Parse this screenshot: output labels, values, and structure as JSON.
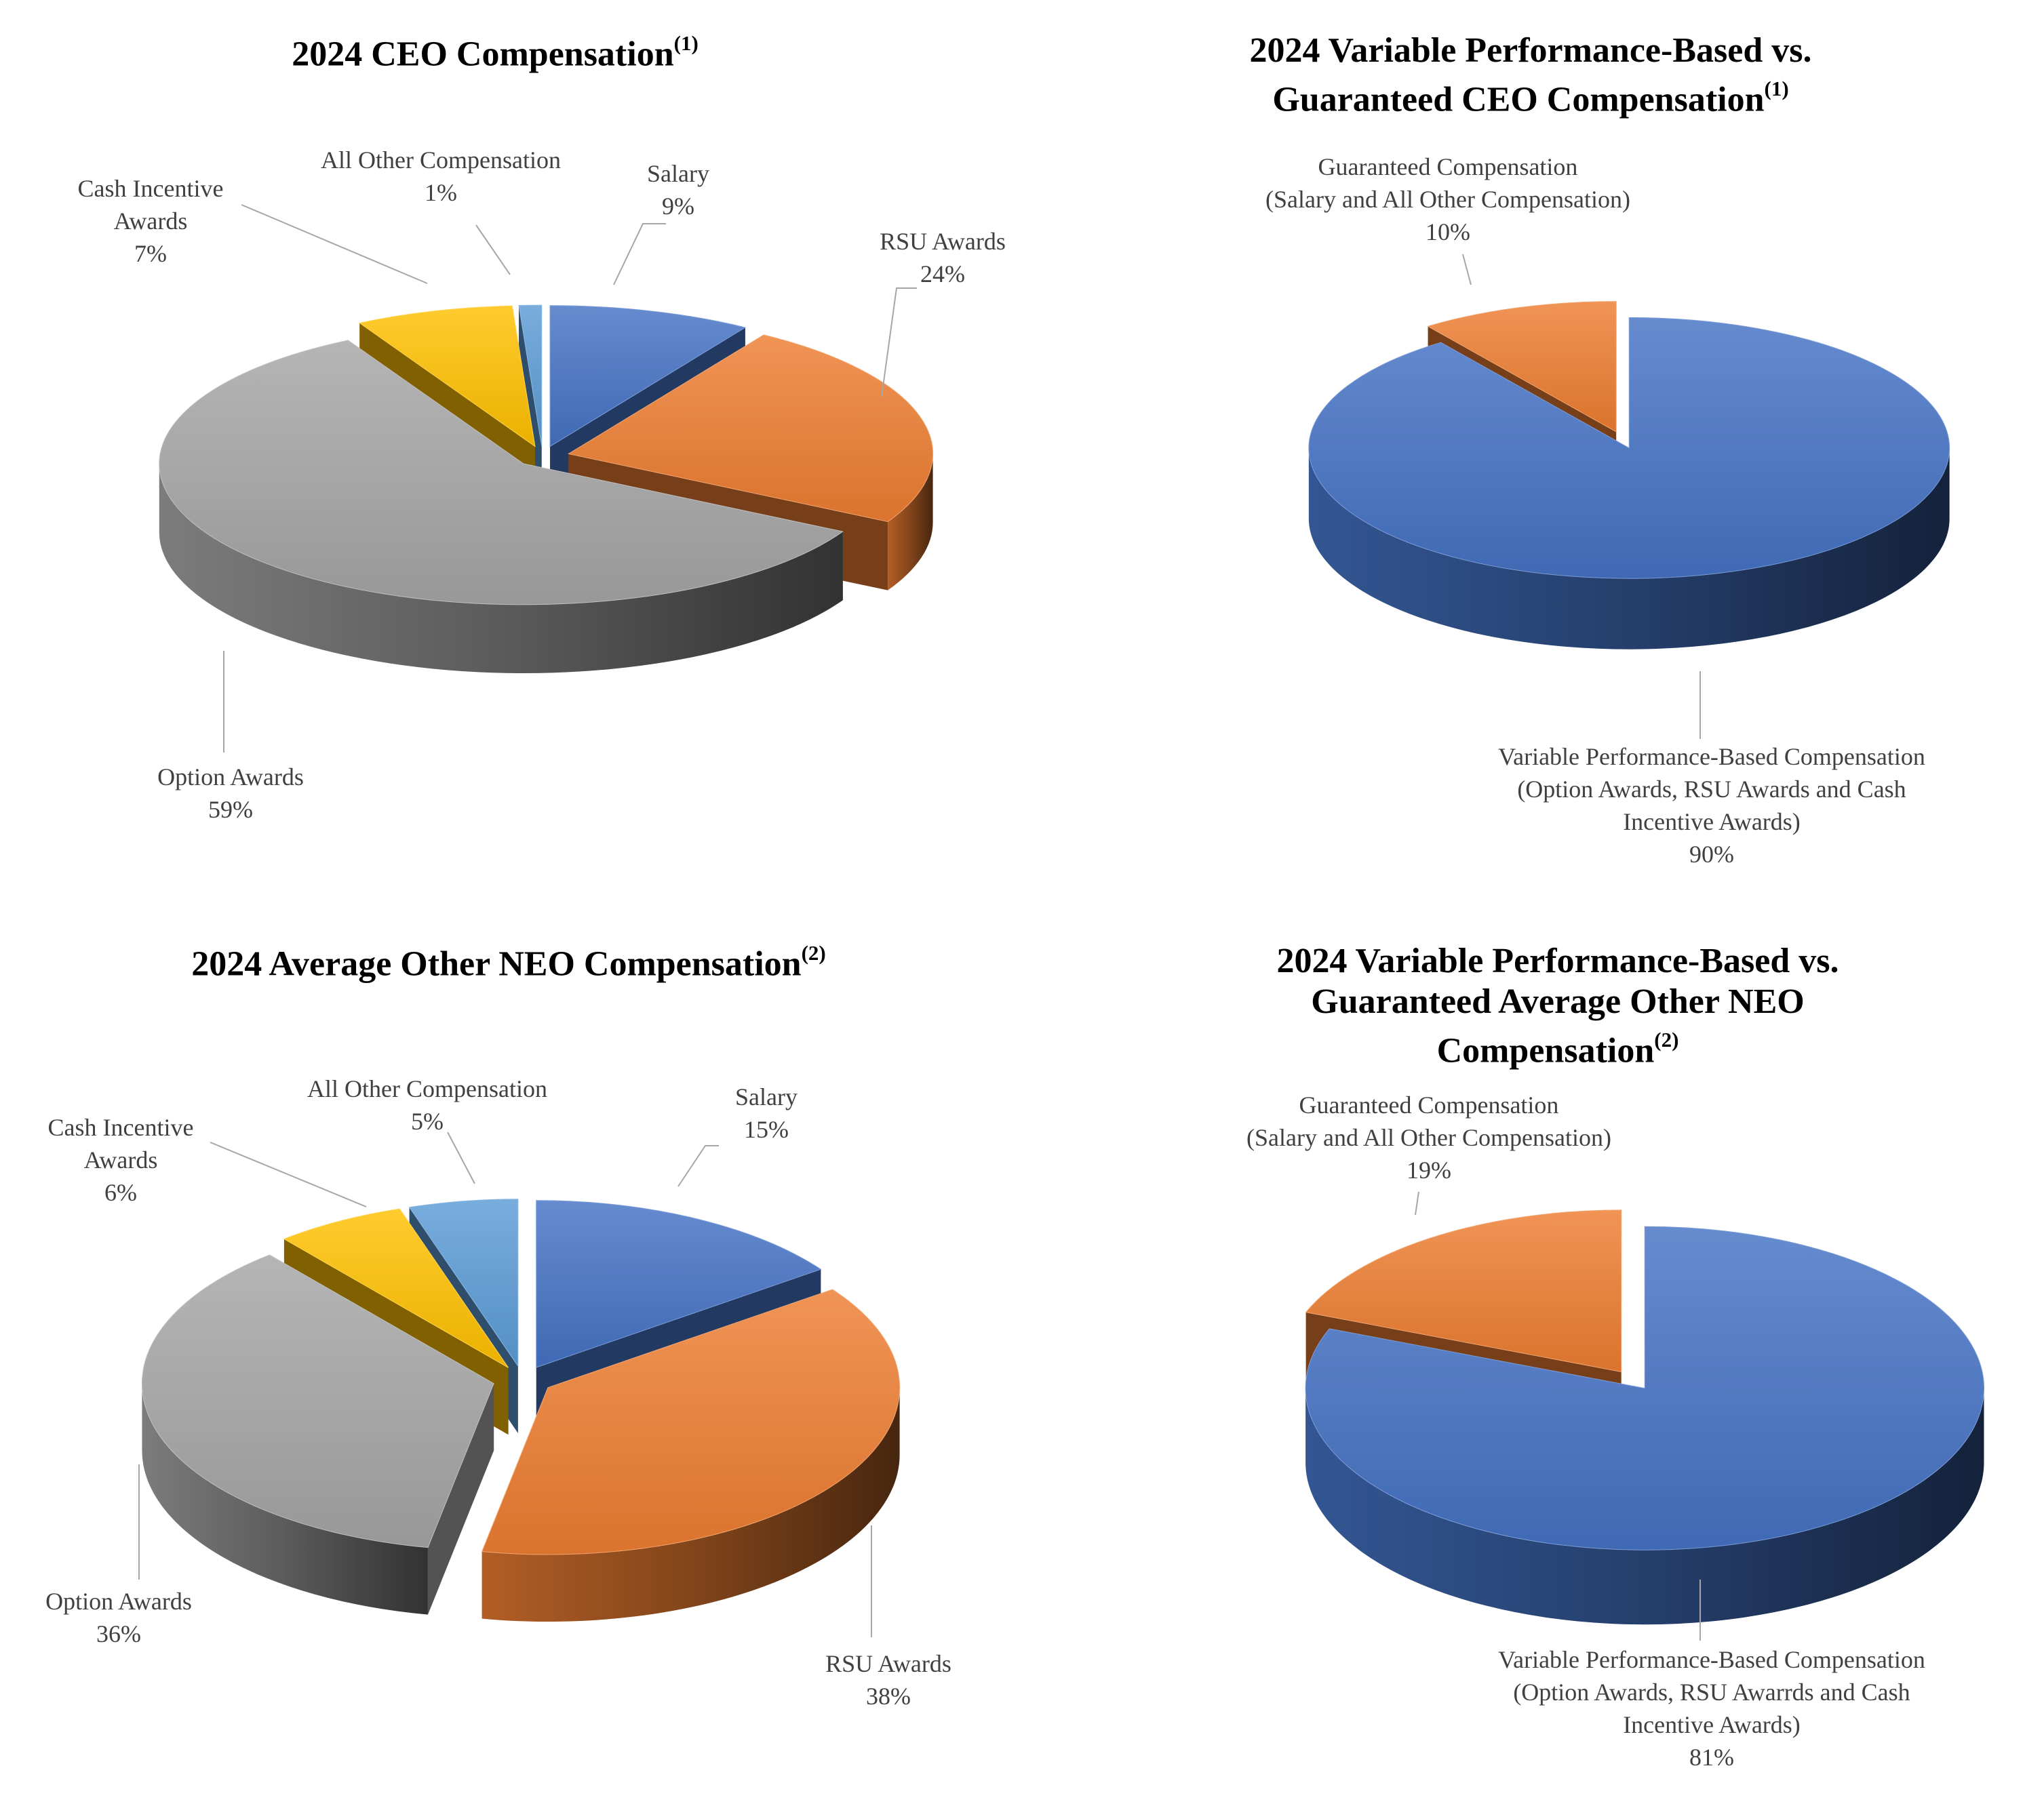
{
  "chart_data": [
    {
      "type": "pie",
      "title": "2024 CEO Compensation",
      "title_note": "(1)",
      "slices": [
        {
          "label": "Salary",
          "value": 9,
          "value_text": "9%",
          "color": "#4472C4"
        },
        {
          "label": "RSU Awards",
          "value": 24,
          "value_text": "24%",
          "color": "#ED7D31"
        },
        {
          "label": "Option Awards",
          "value": 59,
          "value_text": "59%",
          "color": "#A5A5A5"
        },
        {
          "label": "Cash Incentive Awards",
          "value": 7,
          "value_text": "7%",
          "color": "#FFC000"
        },
        {
          "label": "All Other Compensation",
          "value": 1,
          "value_text": "1%",
          "color": "#5B9BD5"
        }
      ]
    },
    {
      "type": "pie",
      "title": "2024 Variable Performance-Based vs. Guaranteed CEO Compensation",
      "title_note": "(1)",
      "slices": [
        {
          "label": "Variable Performance-Based Compensation (Option Awards, RSU Awards and Cash Incentive Awards)",
          "value": 90,
          "value_text": "90%",
          "color": "#4472C4"
        },
        {
          "label": "Guaranteed Compensation (Salary and All Other Compensation)",
          "value": 10,
          "value_text": "10%",
          "color": "#ED7D31"
        }
      ]
    },
    {
      "type": "pie",
      "title": "2024 Average Other NEO Compensation",
      "title_note": "(2)",
      "slices": [
        {
          "label": "Salary",
          "value": 15,
          "value_text": "15%",
          "color": "#4472C4"
        },
        {
          "label": "RSU Awards",
          "value": 38,
          "value_text": "38%",
          "color": "#ED7D31"
        },
        {
          "label": "Option Awards",
          "value": 36,
          "value_text": "36%",
          "color": "#A5A5A5"
        },
        {
          "label": "Cash Incentive Awards",
          "value": 6,
          "value_text": "6%",
          "color": "#FFC000"
        },
        {
          "label": "All Other Compensation",
          "value": 5,
          "value_text": "5%",
          "color": "#5B9BD5"
        }
      ]
    },
    {
      "type": "pie",
      "title": "2024 Variable Performance-Based vs. Guaranteed Average Other NEO Compensation",
      "title_note": "(2)",
      "slices": [
        {
          "label": "Variable Performance-Based Compensation (Option Awards, RSU Awarrds and Cash Incentive Awards)",
          "value": 81,
          "value_text": "81%",
          "color": "#4472C4"
        },
        {
          "label": "Guaranteed Compensation (Salary and All Other Compensation)",
          "value": 19,
          "value_text": "19%",
          "color": "#ED7D31"
        }
      ]
    }
  ]
}
